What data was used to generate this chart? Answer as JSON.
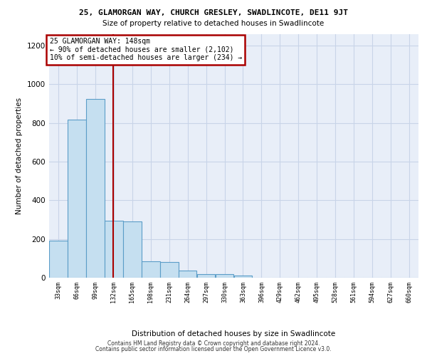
{
  "title_line1": "25, GLAMORGAN WAY, CHURCH GRESLEY, SWADLINCOTE, DE11 9JT",
  "title_line2": "Size of property relative to detached houses in Swadlincote",
  "xlabel": "Distribution of detached houses by size in Swadlincote",
  "ylabel": "Number of detached properties",
  "footer_line1": "Contains HM Land Registry data © Crown copyright and database right 2024.",
  "footer_line2": "Contains public sector information licensed under the Open Government Licence v3.0.",
  "annotation_line1": "25 GLAMORGAN WAY: 148sqm",
  "annotation_line2": "← 90% of detached houses are smaller (2,102)",
  "annotation_line3": "10% of semi-detached houses are larger (234) →",
  "property_size": 148,
  "bin_starts": [
    33,
    66,
    99,
    132,
    165,
    198,
    231,
    264,
    297,
    330,
    363,
    396,
    429,
    462,
    495,
    528,
    561,
    594,
    627,
    660
  ],
  "bin_counts": [
    190,
    815,
    925,
    295,
    290,
    85,
    80,
    35,
    20,
    20,
    10,
    0,
    0,
    0,
    0,
    0,
    0,
    0,
    0,
    0
  ],
  "bar_color": "#c5dff0",
  "bar_edge_color": "#5b9dc8",
  "vline_color": "#aa0000",
  "annotation_box_edgecolor": "#aa0000",
  "grid_color": "#c8d4e8",
  "background_color": "#e8eef8",
  "ylim_max": 1260,
  "yticks": [
    0,
    200,
    400,
    600,
    800,
    1000,
    1200
  ],
  "bin_width": 33,
  "xlim_min": 33,
  "xlim_max": 693
}
